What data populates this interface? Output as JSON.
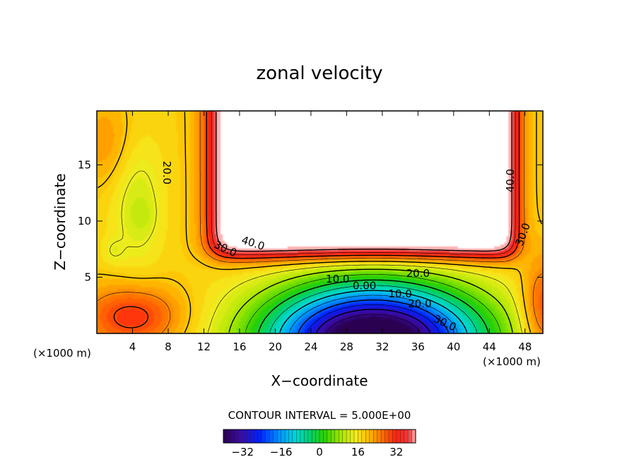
{
  "chart_data": {
    "type": "contour",
    "title": "zonal velocity",
    "xlabel": "X−coordinate",
    "ylabel": "Z−coordinate",
    "x_unit_left": "(×1000 m)",
    "x_unit_right": "(×1000 m)",
    "xlim": [
      0,
      50
    ],
    "ylim": [
      0,
      19.8
    ],
    "x_ticks": [
      4,
      8,
      12,
      16,
      20,
      24,
      28,
      32,
      36,
      40,
      44,
      48
    ],
    "y_ticks": [
      5,
      10,
      15
    ],
    "contour_interval_text": "CONTOUR INTERVAL = 5.000E+00",
    "contour_labels": [
      {
        "text": "20.0",
        "x": 7.8,
        "z": 14.3,
        "rotate": 90
      },
      {
        "text": "40.0",
        "x": 17.5,
        "z": 8.0,
        "rotate": 18
      },
      {
        "text": "30.0",
        "x": 14.4,
        "z": 7.5,
        "rotate": 25
      },
      {
        "text": "10.0",
        "x": 27.0,
        "z": 4.8,
        "rotate": 0
      },
      {
        "text": "0.00",
        "x": 30.0,
        "z": 4.2,
        "rotate": 0
      },
      {
        "text": "20.0",
        "x": 36.0,
        "z": 5.3,
        "rotate": 0
      },
      {
        "text": "10.0",
        "x": 34.0,
        "z": 3.5,
        "rotate": 0
      },
      {
        "text": "20.0",
        "x": 36.2,
        "z": 2.6,
        "rotate": 0
      },
      {
        "text": "30.0",
        "x": 39.0,
        "z": 0.9,
        "rotate": 25
      },
      {
        "text": "40.0",
        "x": 46.4,
        "z": 13.6,
        "rotate": -90
      },
      {
        "text": "30.0",
        "x": 47.8,
        "z": 8.8,
        "rotate": -70
      }
    ],
    "colorbar": {
      "min": -40,
      "max": 40,
      "n_bins": 50,
      "tick_values": [
        -32,
        -16,
        0,
        16,
        32
      ],
      "tick_labels": [
        "−32",
        "−16",
        "0",
        "16",
        "32"
      ]
    },
    "colormap_stops": [
      {
        "v": -40,
        "color": "#2a0050"
      },
      {
        "v": -33,
        "color": "#3b0aa8"
      },
      {
        "v": -25,
        "color": "#0020ff"
      },
      {
        "v": -17,
        "color": "#0090ff"
      },
      {
        "v": -10,
        "color": "#00d8d8"
      },
      {
        "v": -4,
        "color": "#00d070"
      },
      {
        "v": 2,
        "color": "#2ad000"
      },
      {
        "v": 9,
        "color": "#a8e800"
      },
      {
        "v": 15,
        "color": "#f4ec20"
      },
      {
        "v": 20,
        "color": "#ffc000"
      },
      {
        "v": 26,
        "color": "#ff7000"
      },
      {
        "v": 32,
        "color": "#ff2010"
      },
      {
        "v": 37,
        "color": "#f03838"
      },
      {
        "v": 40,
        "color": "#ffb0b0"
      }
    ],
    "undefined_region_color": "#ffffff",
    "undefined_region_above": 44
  }
}
